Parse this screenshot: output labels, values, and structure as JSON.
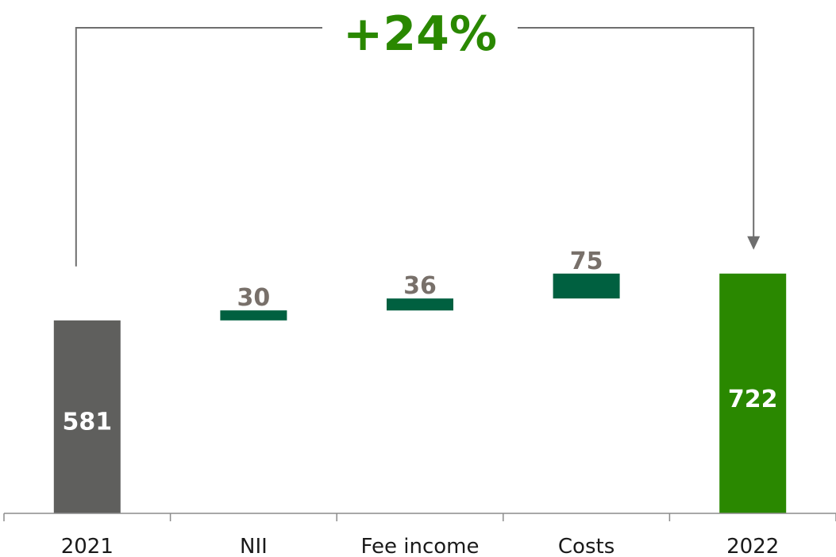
{
  "chart_data": {
    "type": "waterfall",
    "categories": [
      "2021",
      "NII",
      "Fee income",
      "Costs",
      "2022"
    ],
    "values": [
      581,
      30,
      36,
      75,
      722
    ],
    "steps": [
      {
        "category": "2021",
        "value": 581,
        "kind": "total"
      },
      {
        "category": "NII",
        "value": 30,
        "kind": "increase"
      },
      {
        "category": "Fee income",
        "value": 36,
        "kind": "increase"
      },
      {
        "category": "Costs",
        "value": 75,
        "kind": "increase"
      },
      {
        "category": "2022",
        "value": 722,
        "kind": "total"
      }
    ],
    "value_labels": [
      "581",
      "30",
      "36",
      "75",
      "722"
    ],
    "annotation": "+24%",
    "ylim": [
      0,
      810
    ],
    "grid": false,
    "legend": "none"
  },
  "colors": {
    "start_bar": "#5f5f5d",
    "step_bar": "#006040",
    "end_bar": "#2a8800",
    "growth_text": "#2a8800",
    "connector": "#6e6e6e",
    "axis": "#8c8c8c",
    "label_gray": "#78706a"
  }
}
